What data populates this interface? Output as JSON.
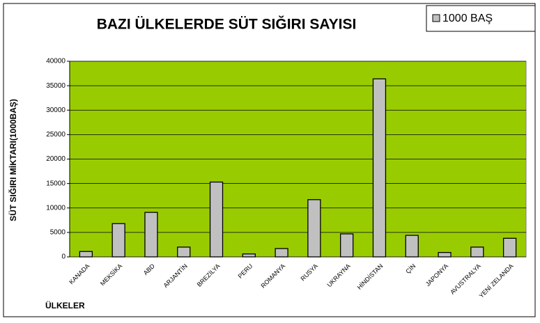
{
  "chart_data": {
    "type": "bar",
    "title": "BAZI ÜLKELERDE SÜT SIĞIRI SAYISI",
    "x_label": "ÜLKELER",
    "y_label": "SÜT SIĞIRI MİKTARI(1000BAŞ)",
    "categories": [
      "KANADA",
      "MEKSİKA",
      "ABD",
      "ARJANTİN",
      "BREZİLYA",
      "PERU",
      "ROMANYA",
      "RUSYA",
      "UKRAYNA",
      "HİNDİSTAN",
      "ÇİN",
      "JAPONYA",
      "AVUSTRALYA",
      "YENİ ZELANDA"
    ],
    "series": [
      {
        "name": "1000 BAŞ",
        "color": "#c0c0c0",
        "values": [
          1100,
          6800,
          9100,
          2000,
          15300,
          600,
          1700,
          11700,
          4700,
          36400,
          4400,
          900,
          2000,
          3800
        ]
      }
    ],
    "ylim": [
      0,
      40000
    ],
    "yticks": [
      0,
      5000,
      10000,
      15000,
      20000,
      25000,
      30000,
      35000,
      40000
    ],
    "grid": true,
    "plot_background": "#99cc00",
    "legend": "top-right"
  }
}
